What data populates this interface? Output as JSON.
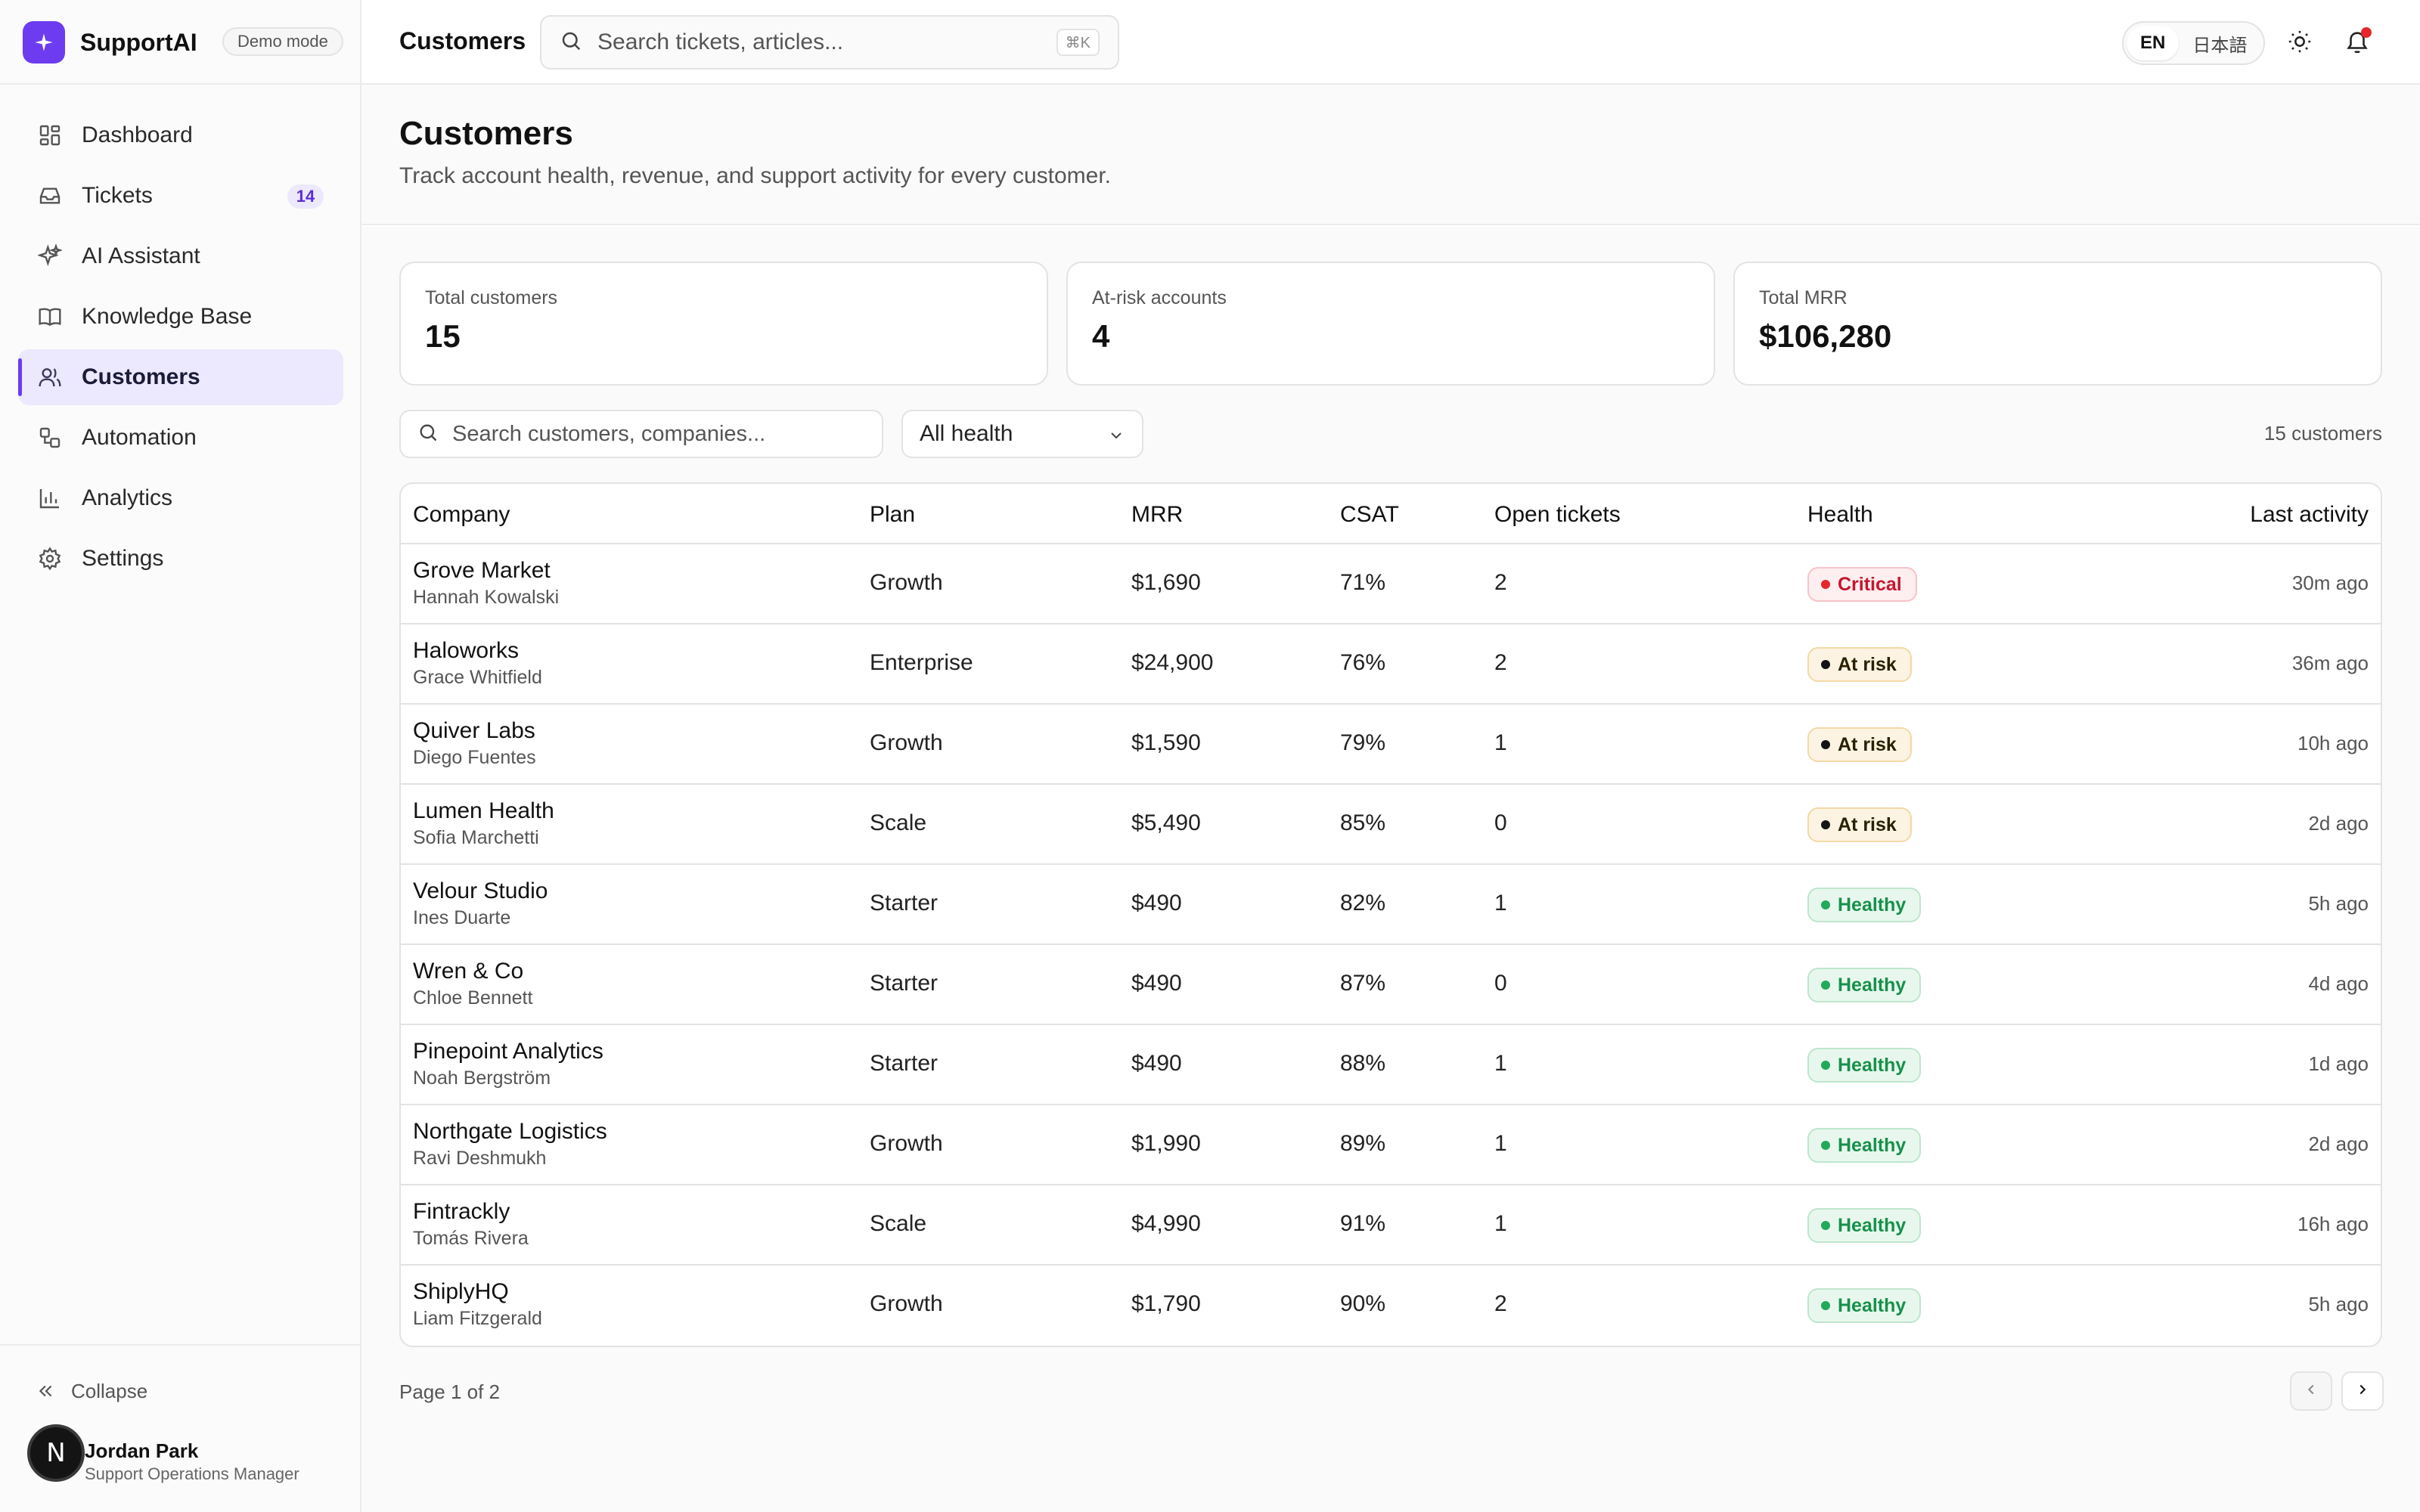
{
  "brand": {
    "name": "SupportAI",
    "mode_badge": "Demo mode"
  },
  "sidebar": {
    "items": [
      {
        "label": "Dashboard",
        "icon": "dashboard-icon"
      },
      {
        "label": "Tickets",
        "icon": "inbox-icon",
        "badge": "14"
      },
      {
        "label": "AI Assistant",
        "icon": "sparkles-icon"
      },
      {
        "label": "Knowledge Base",
        "icon": "book-icon"
      },
      {
        "label": "Customers",
        "icon": "users-icon",
        "active": true
      },
      {
        "label": "Automation",
        "icon": "workflow-icon"
      },
      {
        "label": "Analytics",
        "icon": "bar-chart-icon"
      },
      {
        "label": "Settings",
        "icon": "gear-icon"
      }
    ],
    "collapse_label": "Collapse",
    "user": {
      "initial": "N",
      "name": "Jordan Park",
      "role": "Support Operations Manager"
    }
  },
  "topbar": {
    "title": "Customers",
    "search_placeholder": "Search tickets, articles...",
    "shortcut": "⌘K",
    "languages": [
      "EN",
      "日本語"
    ],
    "active_language": "EN"
  },
  "page": {
    "title": "Customers",
    "subtitle": "Track account health, revenue, and support activity for every customer."
  },
  "stats": [
    {
      "label": "Total customers",
      "value": "15"
    },
    {
      "label": "At-risk accounts",
      "value": "4"
    },
    {
      "label": "Total MRR",
      "value": "$106,280"
    }
  ],
  "filters": {
    "search_placeholder": "Search customers, companies...",
    "health_selected": "All health",
    "count_text": "15 customers"
  },
  "table": {
    "columns": [
      "Company",
      "Plan",
      "MRR",
      "CSAT",
      "Open tickets",
      "Health",
      "Last activity"
    ],
    "rows": [
      {
        "company": "Grove Market",
        "contact": "Hannah Kowalski",
        "plan": "Growth",
        "mrr": "$1,690",
        "csat": "71%",
        "open": "2",
        "health": "Critical",
        "health_key": "critical",
        "last": "30m ago"
      },
      {
        "company": "Haloworks",
        "contact": "Grace Whitfield",
        "plan": "Enterprise",
        "mrr": "$24,900",
        "csat": "76%",
        "open": "2",
        "health": "At risk",
        "health_key": "atrisk",
        "last": "36m ago"
      },
      {
        "company": "Quiver Labs",
        "contact": "Diego Fuentes",
        "plan": "Growth",
        "mrr": "$1,590",
        "csat": "79%",
        "open": "1",
        "health": "At risk",
        "health_key": "atrisk",
        "last": "10h ago"
      },
      {
        "company": "Lumen Health",
        "contact": "Sofia Marchetti",
        "plan": "Scale",
        "mrr": "$5,490",
        "csat": "85%",
        "open": "0",
        "health": "At risk",
        "health_key": "atrisk",
        "last": "2d ago"
      },
      {
        "company": "Velour Studio",
        "contact": "Ines Duarte",
        "plan": "Starter",
        "mrr": "$490",
        "csat": "82%",
        "open": "1",
        "health": "Healthy",
        "health_key": "healthy",
        "last": "5h ago"
      },
      {
        "company": "Wren & Co",
        "contact": "Chloe Bennett",
        "plan": "Starter",
        "mrr": "$490",
        "csat": "87%",
        "open": "0",
        "health": "Healthy",
        "health_key": "healthy",
        "last": "4d ago"
      },
      {
        "company": "Pinepoint Analytics",
        "contact": "Noah Bergström",
        "plan": "Starter",
        "mrr": "$490",
        "csat": "88%",
        "open": "1",
        "health": "Healthy",
        "health_key": "healthy",
        "last": "1d ago"
      },
      {
        "company": "Northgate Logistics",
        "contact": "Ravi Deshmukh",
        "plan": "Growth",
        "mrr": "$1,990",
        "csat": "89%",
        "open": "1",
        "health": "Healthy",
        "health_key": "healthy",
        "last": "2d ago"
      },
      {
        "company": "Fintrackly",
        "contact": "Tomás Rivera",
        "plan": "Scale",
        "mrr": "$4,990",
        "csat": "91%",
        "open": "1",
        "health": "Healthy",
        "health_key": "healthy",
        "last": "16h ago"
      },
      {
        "company": "ShiplyHQ",
        "contact": "Liam Fitzgerald",
        "plan": "Growth",
        "mrr": "$1,790",
        "csat": "90%",
        "open": "2",
        "health": "Healthy",
        "health_key": "healthy",
        "last": "5h ago"
      }
    ]
  },
  "pagination": {
    "text": "Page 1 of 2"
  },
  "colors": {
    "accent": "#6d3bf0",
    "critical": "#c5162e",
    "healthy": "#17914a",
    "notification": "#e5262c"
  }
}
